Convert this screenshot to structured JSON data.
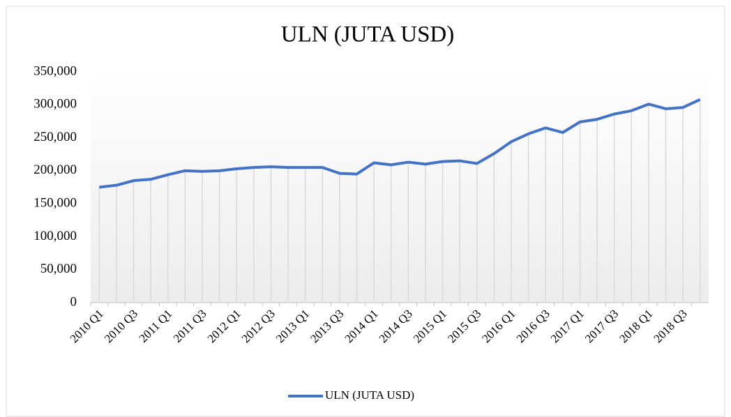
{
  "chart_data": {
    "type": "line",
    "title": "ULN (JUTA USD)",
    "categories": [
      "2010 Q1",
      null,
      "2010 Q3",
      null,
      "2011 Q1",
      null,
      "2011 Q3",
      null,
      "2012 Q1",
      null,
      "2012 Q3",
      null,
      "2013 Q1",
      null,
      "2013 Q3",
      null,
      "2014 Q1",
      null,
      "2014 Q3",
      null,
      "2015 Q1",
      null,
      "2015 Q3",
      null,
      "2016 Q1",
      null,
      "2016 Q3",
      null,
      "2017 Q1",
      null,
      "2017 Q3",
      null,
      "2018 Q1",
      null,
      "2018 Q3",
      null
    ],
    "series": [
      {
        "name": "ULN (JUTA USD)",
        "color": "#4472c4",
        "values": [
          175000,
          178000,
          185000,
          187000,
          194000,
          200000,
          199000,
          200000,
          203000,
          205000,
          206000,
          205000,
          205000,
          205000,
          196000,
          195000,
          212000,
          209000,
          213000,
          210000,
          214000,
          215000,
          211000,
          226000,
          244000,
          256000,
          265000,
          258000,
          274000,
          278000,
          286000,
          291000,
          301000,
          294000,
          296000,
          308000
        ]
      }
    ],
    "ylim": [
      0,
      350000
    ],
    "yticks": [
      0,
      {
        "value": 50000,
        "label": "50,000"
      },
      {
        "value": 100000,
        "label": "100,000"
      },
      {
        "value": 150000,
        "label": "150,000"
      },
      {
        "value": 200000,
        "label": "200,000"
      },
      {
        "value": 250000,
        "label": "250,000"
      },
      {
        "value": 300000,
        "label": "300,000"
      },
      {
        "value": 350000,
        "label": "350,000"
      }
    ],
    "legend": "bottom",
    "drop_lines": true
  }
}
